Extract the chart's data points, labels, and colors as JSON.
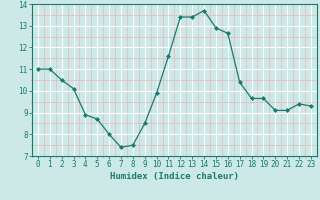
{
  "x": [
    0,
    1,
    2,
    3,
    4,
    5,
    6,
    7,
    8,
    9,
    10,
    11,
    12,
    13,
    14,
    15,
    16,
    17,
    18,
    19,
    20,
    21,
    22,
    23
  ],
  "y": [
    11.0,
    11.0,
    10.5,
    10.1,
    8.9,
    8.7,
    8.0,
    7.4,
    7.5,
    8.5,
    9.9,
    11.6,
    13.4,
    13.4,
    13.7,
    12.9,
    12.65,
    10.4,
    9.65,
    9.65,
    9.1,
    9.1,
    9.4,
    9.3
  ],
  "line_color": "#1a7a6e",
  "marker": "D",
  "marker_size": 2,
  "bg_color": "#cce9e7",
  "grid_major_color": "#ffffff",
  "grid_minor_color": "#e8b8b8",
  "xlabel": "Humidex (Indice chaleur)",
  "ylim": [
    7,
    14
  ],
  "xlim": [
    -0.5,
    23.5
  ],
  "yticks": [
    7,
    8,
    9,
    10,
    11,
    12,
    13,
    14
  ],
  "xticks": [
    0,
    1,
    2,
    3,
    4,
    5,
    6,
    7,
    8,
    9,
    10,
    11,
    12,
    13,
    14,
    15,
    16,
    17,
    18,
    19,
    20,
    21,
    22,
    23
  ],
  "tick_color": "#1a7a6e",
  "label_fontsize": 6.5,
  "tick_fontsize": 5.5
}
